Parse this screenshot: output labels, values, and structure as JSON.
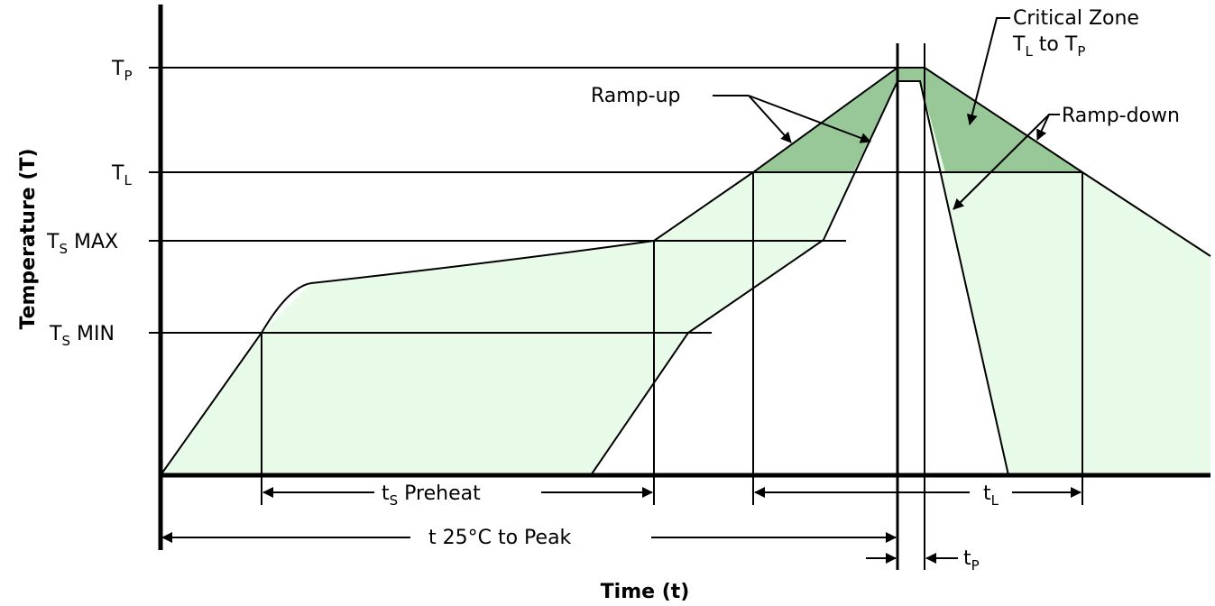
{
  "axes": {
    "y_title": "Temperature (T)",
    "x_title": "Time (t)"
  },
  "levels": {
    "tp": {
      "main": "T",
      "sub": "P"
    },
    "tl": {
      "main": "T",
      "sub": "L"
    },
    "ts_max": {
      "main": "T",
      "sub": "S",
      "suffix": " MAX"
    },
    "ts_min": {
      "main": "T",
      "sub": "S",
      "suffix": " MIN"
    }
  },
  "annotations": {
    "critical_zone_line1": "Critical Zone",
    "critical_zone_line2": {
      "a": "T",
      "a_sub": "L",
      "mid": " to T",
      "b_sub": "P"
    },
    "ramp_up": "Ramp-up",
    "ramp_down": "Ramp-down"
  },
  "durations": {
    "ts_preheat": {
      "main": "t",
      "sub": "S",
      "suffix": " Preheat"
    },
    "t25_to_peak": "t 25°C to Peak",
    "tl": {
      "main": "t",
      "sub": "L"
    },
    "tp": {
      "main": "t",
      "sub": "P"
    }
  },
  "colors": {
    "preheat_fill": "#e8fbe8",
    "critical_fill": "#98c898",
    "line": "#000000"
  }
}
